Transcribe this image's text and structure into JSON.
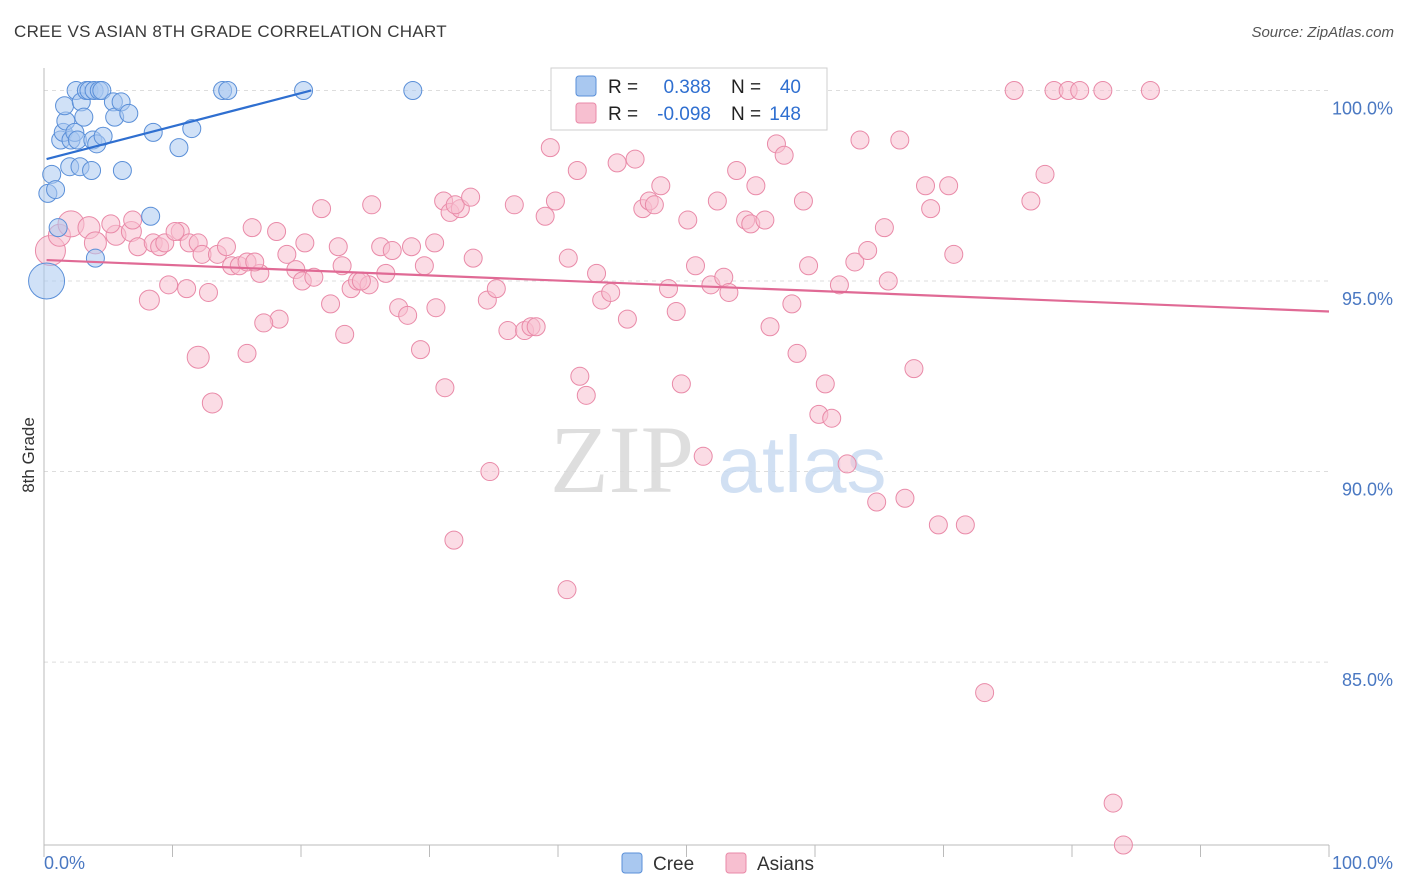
{
  "title": "CREE VS ASIAN 8TH GRADE CORRELATION CHART",
  "source": "Source: ZipAtlas.com",
  "watermark": {
    "zip": "ZIP",
    "atlas": "atlas"
  },
  "colors": {
    "cree_fill": "#a9c8f0",
    "cree_stroke": "#5a8fd8",
    "cree_line": "#2f6fd0",
    "asian_fill": "#f7bfd0",
    "asian_stroke": "#e98aa8",
    "asian_line": "#e06a95",
    "tick_text": "#4a78c2",
    "grid": "#dddddd"
  },
  "legend": {
    "rows": [
      {
        "r_label": "R =",
        "r_value": "0.388",
        "n_label": "N =",
        "n_value": "40"
      },
      {
        "r_label": "R =",
        "r_value": "-0.098",
        "n_label": "N =",
        "n_value": "148"
      }
    ]
  },
  "chart_data": {
    "type": "scatter",
    "xlabel": "",
    "ylabel": "8th Grade",
    "xlim": [
      0,
      100
    ],
    "ylim": [
      80.2,
      100.8
    ],
    "x_tick_labels": [
      "0.0%",
      "100.0%"
    ],
    "y_ticks": [
      100,
      95,
      90,
      85
    ],
    "y_tick_labels": [
      "100.0%",
      "95.0%",
      "90.0%",
      "85.0%"
    ],
    "grid": true,
    "legend_position": "top-center",
    "series": [
      {
        "name": "Cree",
        "trend": [
          [
            0.2,
            98.2
          ],
          [
            20.8,
            100.0
          ]
        ],
        "points": [
          [
            0.2,
            95.0,
            18
          ],
          [
            0.3,
            97.3,
            9
          ],
          [
            0.6,
            97.8,
            9
          ],
          [
            0.9,
            97.4,
            9
          ],
          [
            1.1,
            96.4,
            9
          ],
          [
            1.3,
            98.7,
            9
          ],
          [
            1.5,
            98.9,
            9
          ],
          [
            1.7,
            99.2,
            9
          ],
          [
            1.6,
            99.6,
            9
          ],
          [
            2.0,
            98.0,
            9
          ],
          [
            2.1,
            98.7,
            9
          ],
          [
            2.4,
            98.9,
            9
          ],
          [
            2.6,
            98.7,
            9
          ],
          [
            2.8,
            98.0,
            9
          ],
          [
            2.5,
            100.0,
            9
          ],
          [
            2.9,
            99.7,
            9
          ],
          [
            3.1,
            99.3,
            9
          ],
          [
            3.3,
            100.0,
            9
          ],
          [
            3.5,
            100.0,
            9
          ],
          [
            3.7,
            97.9,
            9
          ],
          [
            3.8,
            98.7,
            9
          ],
          [
            3.9,
            100.0,
            9
          ],
          [
            4.1,
            98.6,
            9
          ],
          [
            4.3,
            100.0,
            9
          ],
          [
            4.0,
            95.6,
            9
          ],
          [
            4.5,
            100.0,
            9
          ],
          [
            4.6,
            98.8,
            9
          ],
          [
            5.4,
            99.7,
            9
          ],
          [
            5.5,
            99.3,
            9
          ],
          [
            6.0,
            99.7,
            9
          ],
          [
            6.1,
            97.9,
            9
          ],
          [
            6.6,
            99.4,
            9
          ],
          [
            8.3,
            96.7,
            9
          ],
          [
            8.5,
            98.9,
            9
          ],
          [
            10.5,
            98.5,
            9
          ],
          [
            11.5,
            99.0,
            9
          ],
          [
            13.9,
            100.0,
            9
          ],
          [
            14.3,
            100.0,
            9
          ],
          [
            20.2,
            100.0,
            9
          ],
          [
            28.7,
            100.0,
            9
          ]
        ]
      },
      {
        "name": "Asians",
        "trend": [
          [
            0.2,
            95.55
          ],
          [
            100.0,
            94.2
          ]
        ],
        "points": [
          [
            0.5,
            95.8,
            15
          ],
          [
            1.2,
            96.2,
            11
          ],
          [
            2.1,
            96.5,
            13
          ],
          [
            3.5,
            96.4,
            11
          ],
          [
            4.0,
            96.0,
            11
          ],
          [
            5.6,
            96.2,
            10
          ],
          [
            6.8,
            96.3,
            10
          ],
          [
            5.2,
            96.5,
            9
          ],
          [
            7.3,
            95.9,
            9
          ],
          [
            8.5,
            96.0,
            9
          ],
          [
            9.0,
            95.9,
            9
          ],
          [
            9.4,
            96.0,
            9
          ],
          [
            6.9,
            96.6,
            9
          ],
          [
            10.6,
            96.3,
            9
          ],
          [
            10.2,
            96.3,
            9
          ],
          [
            11.3,
            96.0,
            9
          ],
          [
            12.0,
            96.0,
            9
          ],
          [
            12.3,
            95.7,
            9
          ],
          [
            13.5,
            95.7,
            9
          ],
          [
            14.2,
            95.9,
            9
          ],
          [
            14.6,
            95.4,
            9
          ],
          [
            15.2,
            95.4,
            9
          ],
          [
            15.8,
            95.5,
            9
          ],
          [
            16.8,
            95.2,
            9
          ],
          [
            16.2,
            96.4,
            9
          ],
          [
            18.1,
            96.3,
            9
          ],
          [
            18.9,
            95.7,
            9
          ],
          [
            19.6,
            95.3,
            9
          ],
          [
            20.1,
            95.0,
            9
          ],
          [
            21.6,
            96.9,
            9
          ],
          [
            22.3,
            94.4,
            9
          ],
          [
            23.2,
            95.4,
            9
          ],
          [
            23.9,
            94.8,
            9
          ],
          [
            24.4,
            95.0,
            9
          ],
          [
            25.3,
            94.9,
            9
          ],
          [
            26.2,
            95.9,
            9
          ],
          [
            26.6,
            95.2,
            9
          ],
          [
            25.5,
            97.0,
            9
          ],
          [
            27.6,
            94.3,
            9
          ],
          [
            28.3,
            94.1,
            9
          ],
          [
            28.6,
            95.9,
            9
          ],
          [
            29.6,
            95.4,
            9
          ],
          [
            30.4,
            96.0,
            9
          ],
          [
            30.5,
            94.3,
            9
          ],
          [
            31.1,
            97.1,
            9
          ],
          [
            31.6,
            96.8,
            9
          ],
          [
            32.4,
            96.9,
            9
          ],
          [
            32.0,
            97.0,
            9
          ],
          [
            33.4,
            95.6,
            9
          ],
          [
            34.5,
            94.5,
            9
          ],
          [
            35.2,
            94.8,
            9
          ],
          [
            36.1,
            93.7,
            9
          ],
          [
            36.6,
            97.0,
            9
          ],
          [
            37.4,
            93.7,
            9
          ],
          [
            37.9,
            93.8,
            9
          ],
          [
            38.3,
            93.8,
            9
          ],
          [
            39.0,
            96.7,
            9
          ],
          [
            39.4,
            98.5,
            9
          ],
          [
            39.8,
            97.1,
            9
          ],
          [
            40.8,
            95.6,
            9
          ],
          [
            41.5,
            97.9,
            9
          ],
          [
            41.7,
            92.5,
            9
          ],
          [
            42.2,
            92.0,
            9
          ],
          [
            43.0,
            95.2,
            9
          ],
          [
            43.4,
            94.5,
            9
          ],
          [
            44.1,
            94.7,
            9
          ],
          [
            44.6,
            98.1,
            9
          ],
          [
            45.4,
            94.0,
            9
          ],
          [
            46.0,
            98.2,
            9
          ],
          [
            46.6,
            96.9,
            9
          ],
          [
            47.1,
            97.1,
            9
          ],
          [
            47.5,
            97.0,
            9
          ],
          [
            48.0,
            97.5,
            9
          ],
          [
            48.6,
            94.8,
            9
          ],
          [
            49.2,
            94.2,
            9
          ],
          [
            49.6,
            92.3,
            9
          ],
          [
            50.1,
            96.6,
            9
          ],
          [
            50.7,
            95.4,
            9
          ],
          [
            51.3,
            90.4,
            9
          ],
          [
            51.9,
            94.9,
            9
          ],
          [
            52.4,
            97.1,
            9
          ],
          [
            52.9,
            95.1,
            9
          ],
          [
            53.3,
            94.7,
            9
          ],
          [
            53.9,
            97.9,
            9
          ],
          [
            54.6,
            96.6,
            9
          ],
          [
            55.0,
            96.5,
            9
          ],
          [
            55.4,
            97.5,
            9
          ],
          [
            56.1,
            96.6,
            9
          ],
          [
            56.5,
            93.8,
            9
          ],
          [
            57.0,
            98.6,
            9
          ],
          [
            57.6,
            98.3,
            9
          ],
          [
            58.2,
            94.4,
            9
          ],
          [
            58.6,
            93.1,
            9
          ],
          [
            59.1,
            97.1,
            9
          ],
          [
            59.5,
            95.4,
            9
          ],
          [
            60.3,
            91.5,
            9
          ],
          [
            60.8,
            92.3,
            9
          ],
          [
            61.3,
            91.4,
            9
          ],
          [
            61.9,
            94.9,
            9
          ],
          [
            62.5,
            90.2,
            9
          ],
          [
            63.1,
            95.5,
            9
          ],
          [
            63.5,
            98.7,
            9
          ],
          [
            64.1,
            95.8,
            9
          ],
          [
            64.8,
            89.2,
            9
          ],
          [
            65.4,
            96.4,
            9
          ],
          [
            65.7,
            95.0,
            9
          ],
          [
            66.6,
            98.7,
            9
          ],
          [
            67.0,
            89.3,
            9
          ],
          [
            67.7,
            92.7,
            9
          ],
          [
            68.6,
            97.5,
            9
          ],
          [
            69.0,
            96.9,
            9
          ],
          [
            69.6,
            88.6,
            9
          ],
          [
            70.4,
            97.5,
            9
          ],
          [
            70.8,
            95.7,
            9
          ],
          [
            71.7,
            88.6,
            9
          ],
          [
            73.2,
            84.2,
            9
          ],
          [
            75.5,
            100.0,
            9
          ],
          [
            76.8,
            97.1,
            9
          ],
          [
            77.9,
            97.8,
            9
          ],
          [
            78.6,
            100.0,
            9
          ],
          [
            79.7,
            100.0,
            9
          ],
          [
            80.6,
            100.0,
            9
          ],
          [
            82.4,
            100.0,
            9
          ],
          [
            86.1,
            100.0,
            9
          ],
          [
            84.0,
            80.2,
            9
          ],
          [
            83.2,
            81.3,
            9
          ],
          [
            31.9,
            88.2,
            9
          ],
          [
            34.7,
            90.0,
            9
          ],
          [
            40.7,
            86.9,
            9
          ],
          [
            12.0,
            93.0,
            11
          ],
          [
            8.2,
            94.5,
            10
          ],
          [
            13.1,
            91.8,
            10
          ],
          [
            23.4,
            93.6,
            9
          ],
          [
            18.3,
            94.0,
            9
          ],
          [
            15.8,
            93.1,
            9
          ],
          [
            31.2,
            92.2,
            9
          ],
          [
            9.7,
            94.9,
            9
          ],
          [
            11.1,
            94.8,
            9
          ],
          [
            12.8,
            94.7,
            9
          ],
          [
            16.4,
            95.5,
            9
          ],
          [
            17.1,
            93.9,
            9
          ],
          [
            20.3,
            96.0,
            9
          ],
          [
            21.0,
            95.1,
            9
          ],
          [
            22.9,
            95.9,
            9
          ],
          [
            24.7,
            95.0,
            9
          ],
          [
            27.1,
            95.8,
            9
          ],
          [
            29.3,
            93.2,
            9
          ],
          [
            33.2,
            97.2,
            9
          ]
        ]
      }
    ]
  }
}
